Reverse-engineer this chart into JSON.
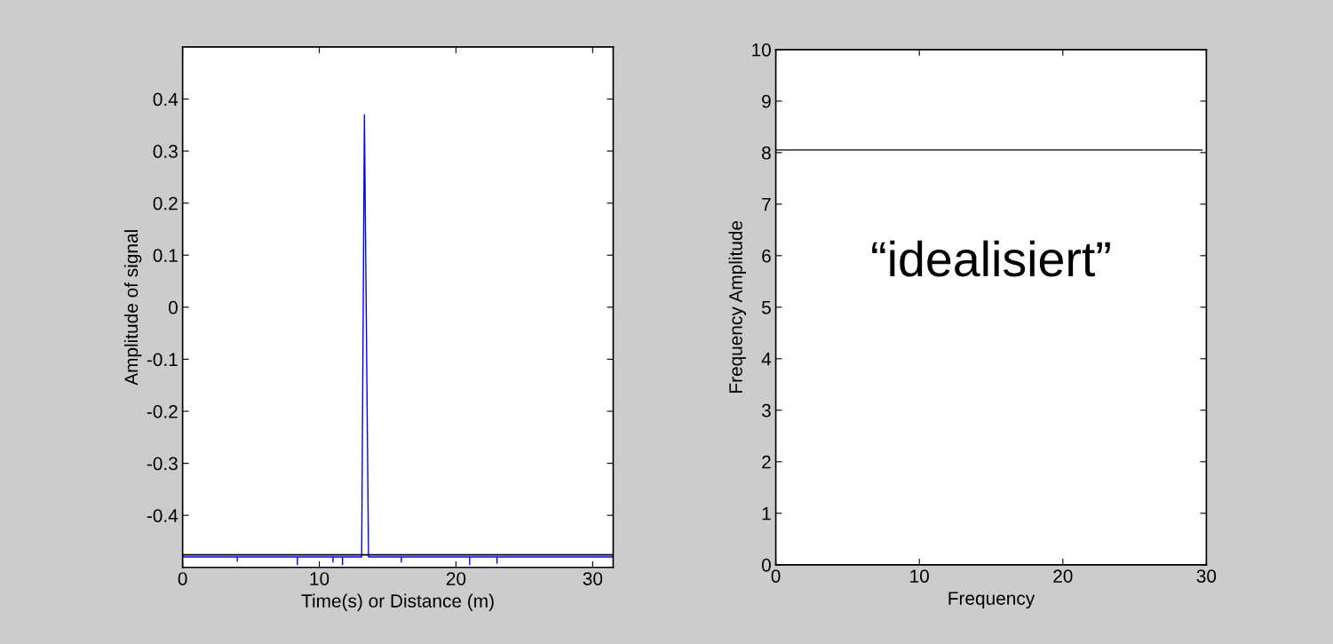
{
  "chart_data": [
    {
      "type": "line",
      "xlabel": "Time(s) or Distance (m)",
      "ylabel": "Amplitude of signal",
      "xlim": [
        0,
        31.5
      ],
      "ylim": [
        -0.5,
        0.5
      ],
      "xticks": [
        0,
        10,
        20,
        30
      ],
      "yticks": [
        -0.4,
        -0.3,
        -0.2,
        -0.1,
        0,
        0.1,
        0.2,
        0.3,
        0.4
      ],
      "grid": false,
      "legend": false,
      "ref_lines": [
        {
          "axis": "y",
          "value": -0.476,
          "color": "#000000"
        }
      ],
      "series": [
        {
          "color": "#0000ff",
          "x": [
            0,
            4.0,
            4.0,
            4.0,
            8.4,
            8.4,
            8.4,
            11.0,
            11.0,
            11.0,
            11.7,
            11.7,
            11.7,
            13.1,
            13.3,
            13.6,
            16.0,
            16.0,
            16.0,
            21.0,
            21.0,
            21.0,
            23.0,
            23.0,
            23.0,
            31.5
          ],
          "values": [
            -0.48,
            -0.48,
            -0.488,
            -0.48,
            -0.48,
            -0.495,
            -0.48,
            -0.48,
            -0.49,
            -0.48,
            -0.48,
            -0.495,
            -0.48,
            -0.48,
            0.37,
            -0.48,
            -0.48,
            -0.49,
            -0.48,
            -0.48,
            -0.495,
            -0.48,
            -0.48,
            -0.492,
            -0.48,
            -0.48
          ]
        }
      ]
    },
    {
      "type": "line",
      "xlabel": "Frequency",
      "ylabel": "Frequency Amplitude",
      "xlim": [
        0,
        30
      ],
      "ylim": [
        0,
        10
      ],
      "xticks": [
        0,
        10,
        20,
        30
      ],
      "yticks": [
        0,
        1,
        2,
        3,
        4,
        5,
        6,
        7,
        8,
        9,
        10
      ],
      "grid": false,
      "legend": false,
      "annotations": [
        "“idealisiert”"
      ],
      "series": [
        {
          "color": "#000000",
          "x": [
            0,
            29.7
          ],
          "values": [
            8.05,
            8.05
          ]
        }
      ]
    }
  ]
}
